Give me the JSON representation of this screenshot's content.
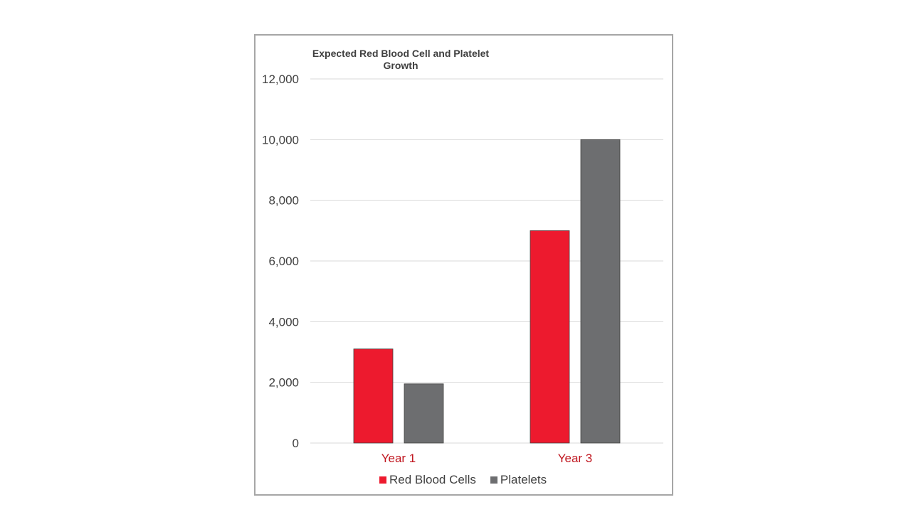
{
  "chart_data": {
    "type": "bar",
    "title": "Expected Red Blood Cell and Platelet Growth",
    "categories": [
      "Year 1",
      "Year 3"
    ],
    "series": [
      {
        "name": "Red Blood Cells",
        "color": "#ed1a2e",
        "values": [
          3100,
          7000
        ]
      },
      {
        "name": "Platelets",
        "color": "#6d6e70",
        "values": [
          1950,
          10000
        ]
      }
    ],
    "y_ticks": [
      "0",
      "2,000",
      "4,000",
      "6,000",
      "8,000",
      "10,000",
      "12,000"
    ],
    "ylim": [
      0,
      12000
    ],
    "grid": true,
    "legend_position": "bottom",
    "category_label_color": "#c0161f",
    "tick_label_color": "#404040"
  }
}
